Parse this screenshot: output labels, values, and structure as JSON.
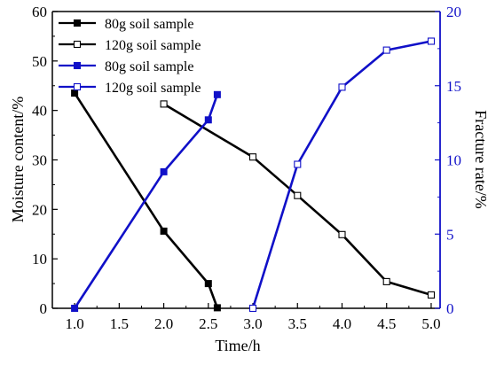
{
  "colors": {
    "left_axis": "#000000",
    "right_axis": "#1010c8",
    "series_black": "#000000",
    "series_blue": "#1010c8"
  },
  "chart_data": {
    "type": "line",
    "xlabel": "Time/h",
    "ylabel_left": "Moisture content/%",
    "ylabel_right": "Fracture rate/%",
    "xlim": [
      0.75,
      5.1
    ],
    "ylim_left": [
      0,
      60
    ],
    "ylim_right": [
      0,
      20
    ],
    "x_ticks": [
      1.0,
      1.5,
      2.0,
      2.5,
      3.0,
      3.5,
      4.0,
      4.5,
      5.0
    ],
    "x_tick_labels": [
      "1.0",
      "1.5",
      "2.0",
      "2.5",
      "3.0",
      "3.5",
      "4.0",
      "4.5",
      "5.0"
    ],
    "y_left_ticks": [
      0,
      10,
      20,
      30,
      40,
      50,
      60
    ],
    "y_left_tick_labels": [
      "0",
      "10",
      "20",
      "30",
      "40",
      "50",
      "60"
    ],
    "y_right_ticks": [
      0,
      5,
      10,
      15,
      20
    ],
    "y_right_tick_labels": [
      "0",
      "5",
      "10",
      "15",
      "20"
    ],
    "grid": false,
    "legend_position": "top-left",
    "series": [
      {
        "name": "80g soil sample",
        "axis": "left",
        "color": "#000000",
        "marker": "filled-square",
        "x": [
          1.0,
          2.0,
          2.5,
          2.6
        ],
        "y": [
          43.5,
          15.6,
          5.0,
          0.1
        ]
      },
      {
        "name": "120g soil sample",
        "axis": "left",
        "color": "#000000",
        "marker": "open-square",
        "x": [
          2.0,
          3.0,
          3.5,
          4.0,
          4.5,
          5.0
        ],
        "y": [
          41.3,
          30.6,
          22.8,
          14.9,
          5.4,
          2.7
        ]
      },
      {
        "name": "80g soil sample",
        "axis": "right",
        "color": "#1010c8",
        "marker": "filled-square",
        "x": [
          1.0,
          2.0,
          2.5,
          2.6
        ],
        "y": [
          0.0,
          9.2,
          12.7,
          14.4
        ]
      },
      {
        "name": "120g soil sample",
        "axis": "right",
        "color": "#1010c8",
        "marker": "open-square",
        "x": [
          3.0,
          3.5,
          4.0,
          4.5,
          5.0
        ],
        "y": [
          0.0,
          9.7,
          14.9,
          17.4,
          18.0
        ]
      }
    ]
  }
}
